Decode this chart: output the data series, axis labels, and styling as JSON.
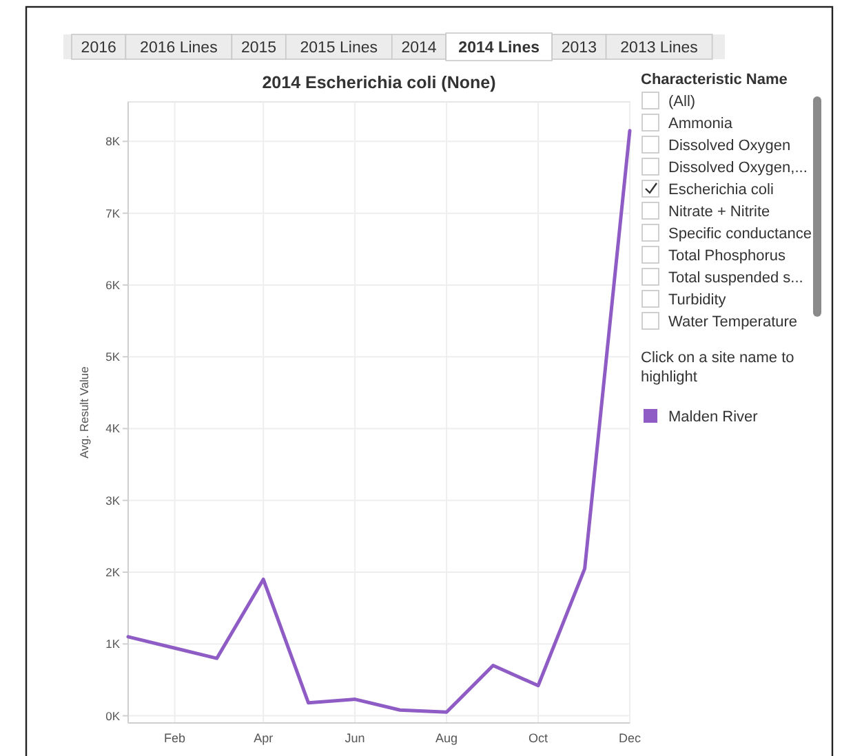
{
  "chart_data": {
    "type": "line",
    "title": "2014 Escherichia coli (None)",
    "ylabel": "Avg. Result Value",
    "x": [
      "2014-01-01",
      "2014-03-01",
      "2014-04-01",
      "2014-05-01",
      "2014-06-01",
      "2014-07-01",
      "2014-08-01",
      "2014-09-01",
      "2014-10-01",
      "2014-11-01",
      "2014-12-01"
    ],
    "series": [
      {
        "name": "Malden River",
        "color": "#8e5cc4",
        "values": [
          1100,
          800,
          1900,
          180,
          230,
          80,
          50,
          700,
          420,
          2050,
          8150
        ]
      }
    ],
    "xlim": [
      "2014-01-01",
      "2014-12-01"
    ],
    "xticks": [
      {
        "value": "2014-02-01",
        "label": "Feb"
      },
      {
        "value": "2014-04-01",
        "label": "Apr"
      },
      {
        "value": "2014-06-01",
        "label": "Jun"
      },
      {
        "value": "2014-08-01",
        "label": "Aug"
      },
      {
        "value": "2014-10-01",
        "label": "Oct"
      },
      {
        "value": "2014-12-01",
        "label": "Dec"
      }
    ],
    "ylim": [
      -100,
      8550
    ],
    "yticks": [
      {
        "value": 0,
        "label": "0K"
      },
      {
        "value": 1000,
        "label": "1K"
      },
      {
        "value": 2000,
        "label": "2K"
      },
      {
        "value": 3000,
        "label": "3K"
      },
      {
        "value": 4000,
        "label": "4K"
      },
      {
        "value": 5000,
        "label": "5K"
      },
      {
        "value": 6000,
        "label": "6K"
      },
      {
        "value": 7000,
        "label": "7K"
      },
      {
        "value": 8000,
        "label": "8K"
      }
    ],
    "grid": true,
    "legend": "right",
    "marker": "none",
    "line_style": "solid",
    "legend_title": "Click on a site name to highlight",
    "annotations": [
      "2016",
      "2016 Lines",
      "2015",
      "2015 Lines",
      "2014",
      "2014 Lines",
      "2013",
      "2013 Lines",
      "Characteristic Name",
      "(All)",
      "Ammonia",
      "Dissolved Oxygen",
      "Dissolved Oxygen,...",
      "Escherichia coli",
      "Nitrate + Nitrite",
      "Specific conductance",
      "Total Phosphorus",
      "Total suspended s...",
      "Turbidity",
      "Water Temperature"
    ]
  }
}
